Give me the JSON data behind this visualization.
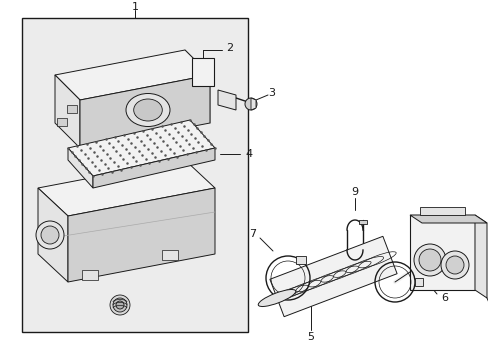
{
  "background_color": "#ffffff",
  "fig_width": 4.89,
  "fig_height": 3.6,
  "dpi": 100,
  "fill_light": "#f2f2f2",
  "fill_mid": "#e4e4e4",
  "fill_dark": "#d0d0d0",
  "fill_box": "#ebebeb",
  "line_color": "#1a1a1a",
  "label_fs": 7.5
}
